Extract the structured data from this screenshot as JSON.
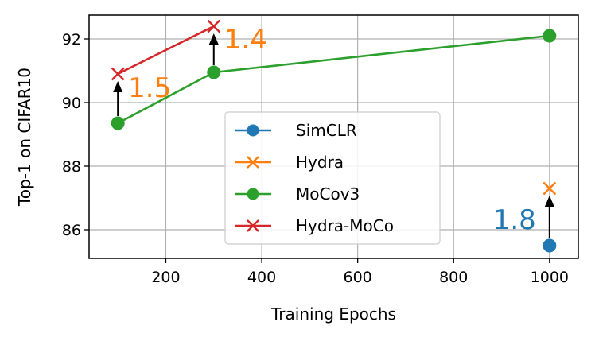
{
  "chart_data": {
    "type": "line",
    "xlabel": "Training Epochs",
    "ylabel": "Top-1 on CIFAR10",
    "xlim": [
      40,
      1060
    ],
    "ylim": [
      85.1,
      92.75
    ],
    "xticks": [
      200,
      400,
      600,
      800,
      1000
    ],
    "yticks": [
      86,
      88,
      90,
      92
    ],
    "grid": true,
    "legend_position": "lower center",
    "series": [
      {
        "name": "SimCLR",
        "color": "#1f77b4",
        "marker": "circle",
        "x": [
          1000
        ],
        "y": [
          85.5
        ]
      },
      {
        "name": "Hydra",
        "color": "#ff7f0e",
        "marker": "x",
        "x": [
          1000
        ],
        "y": [
          87.3
        ]
      },
      {
        "name": "MoCov3",
        "color": "#2ca02c",
        "marker": "circle",
        "x": [
          100,
          300,
          1000
        ],
        "y": [
          89.35,
          90.95,
          92.1
        ]
      },
      {
        "name": "Hydra-MoCo",
        "color": "#d62728",
        "marker": "x",
        "x": [
          100,
          300
        ],
        "y": [
          90.9,
          92.4
        ]
      }
    ],
    "annotations": [
      {
        "text": "1.5",
        "color": "#ff7f0e",
        "x": 100,
        "from_y": 89.35,
        "to_y": 90.9
      },
      {
        "text": "1.4",
        "color": "#ff7f0e",
        "x": 300,
        "from_y": 90.95,
        "to_y": 92.4
      },
      {
        "text": "1.8",
        "color": "#1f77b4",
        "x": 1000,
        "from_y": 85.5,
        "to_y": 87.3
      }
    ]
  }
}
